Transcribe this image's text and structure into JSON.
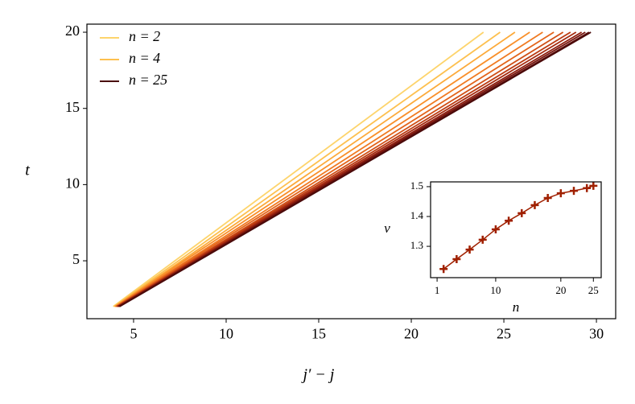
{
  "chart_data": [
    {
      "type": "line",
      "xlabel": "j′ − j",
      "ylabel": "t",
      "xlim": [
        2.48,
        31.04
      ],
      "ylim": [
        1.2,
        20.53
      ],
      "xticks": [
        5,
        10,
        15,
        20,
        25,
        30
      ],
      "yticks": [
        5,
        10,
        15,
        20
      ],
      "legend": "upper left",
      "series": [
        {
          "name": "n = 2",
          "color": "#fdd46c",
          "x": [
            3.9,
            23.9
          ],
          "values": [
            2,
            20
          ]
        },
        {
          "name": "n = 4",
          "color": "#fdc04f",
          "x": [
            3.95,
            24.8
          ],
          "values": [
            2,
            20
          ]
        },
        {
          "color": "#fcaa3a",
          "x": [
            4.0,
            25.6
          ],
          "values": [
            2,
            20
          ]
        },
        {
          "color": "#f98f2a",
          "x": [
            4.0,
            26.4
          ],
          "values": [
            2,
            20
          ]
        },
        {
          "color": "#f07a22",
          "x": [
            4.05,
            27.1
          ],
          "values": [
            2,
            20
          ]
        },
        {
          "color": "#e3641b",
          "x": [
            4.05,
            27.7
          ],
          "values": [
            2,
            20
          ]
        },
        {
          "color": "#d04f16",
          "x": [
            4.1,
            28.2
          ],
          "values": [
            2,
            20
          ]
        },
        {
          "color": "#bb3b12",
          "x": [
            4.1,
            28.6
          ],
          "values": [
            2,
            20
          ]
        },
        {
          "color": "#a52a0f",
          "x": [
            4.15,
            28.9
          ],
          "values": [
            2,
            20
          ]
        },
        {
          "color": "#8d1d0d",
          "x": [
            4.15,
            29.2
          ],
          "values": [
            2,
            20
          ]
        },
        {
          "color": "#75140d",
          "x": [
            4.2,
            29.4
          ],
          "values": [
            2,
            20
          ]
        },
        {
          "color": "#5e0e0b",
          "x": [
            4.2,
            29.6
          ],
          "values": [
            2,
            20
          ]
        },
        {
          "name": "n = 25",
          "color": "#4a0a0a",
          "x": [
            4.25,
            29.7
          ],
          "values": [
            2,
            20
          ]
        }
      ]
    },
    {
      "type": "line",
      "xlabel": "n",
      "ylabel": "v",
      "xlim": [
        0,
        26.2
      ],
      "ylim": [
        1.195,
        1.516
      ],
      "xticks": [
        1,
        10,
        20,
        25
      ],
      "yticks": [
        1.3,
        1.4,
        1.5
      ],
      "series": [
        {
          "color": "#a02000",
          "marker": "+",
          "x": [
            2,
            4,
            6,
            8,
            10,
            12,
            14,
            16,
            18,
            20,
            22,
            24,
            25
          ],
          "values": [
            1.224,
            1.257,
            1.289,
            1.322,
            1.357,
            1.386,
            1.411,
            1.438,
            1.462,
            1.478,
            1.486,
            1.495,
            1.503
          ]
        }
      ]
    }
  ]
}
